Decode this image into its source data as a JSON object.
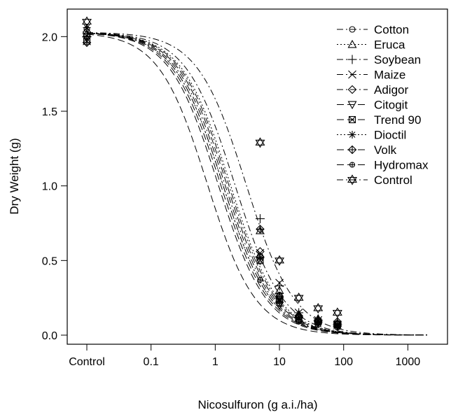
{
  "chart_data": {
    "type": "scatter",
    "title": "",
    "xlabel": "Nicosulfuron (g a.i./ha)",
    "ylabel": "Dry Weight  (g)",
    "x_scale": "log",
    "xlim": [
      0.01,
      2000
    ],
    "ylim": [
      0,
      2.1
    ],
    "x_ticks": [
      {
        "value": 0.01,
        "label": "Control"
      },
      {
        "value": 0.1,
        "label": "0.1"
      },
      {
        "value": 1,
        "label": "1"
      },
      {
        "value": 10,
        "label": "10"
      },
      {
        "value": 100,
        "label": "100"
      },
      {
        "value": 1000,
        "label": "1000"
      }
    ],
    "y_ticks": [
      {
        "value": 0.0,
        "label": "0.0"
      },
      {
        "value": 0.5,
        "label": "0.5"
      },
      {
        "value": 1.0,
        "label": "1.0"
      },
      {
        "value": 1.5,
        "label": "1.5"
      },
      {
        "value": 2.0,
        "label": "2.0"
      }
    ],
    "grid": false,
    "legend_position": "top-right",
    "x": [
      0.01,
      5,
      10,
      20,
      40,
      80
    ],
    "series": [
      {
        "name": "Cotton",
        "marker": "circle",
        "line": "dash-dot",
        "values": [
          2.05,
          0.53,
          0.27,
          0.12,
          0.1,
          0.08
        ],
        "ed50": 1.4
      },
      {
        "name": "Eruca",
        "marker": "triangle",
        "line": "dotted",
        "values": [
          2.02,
          0.7,
          0.3,
          0.14,
          0.11,
          0.08
        ],
        "ed50": 1.7
      },
      {
        "name": "Soybean",
        "marker": "plus",
        "line": "dash-dot",
        "values": [
          2.0,
          0.78,
          0.33,
          0.15,
          0.1,
          0.07
        ],
        "ed50": 2.0
      },
      {
        "name": "Maize",
        "marker": "x",
        "line": "dash-dot",
        "values": [
          1.97,
          0.55,
          0.35,
          0.15,
          0.1,
          0.07
        ],
        "ed50": 1.6
      },
      {
        "name": "Adigor",
        "marker": "diamond",
        "line": "dash-dot",
        "values": [
          2.03,
          0.56,
          0.25,
          0.12,
          0.09,
          0.07
        ],
        "ed50": 1.3
      },
      {
        "name": "Citogit",
        "marker": "down-triangle",
        "line": "dash",
        "values": [
          2.0,
          0.5,
          0.2,
          0.1,
          0.08,
          0.06
        ],
        "ed50": 1.1
      },
      {
        "name": "Trend 90",
        "marker": "boxed-x",
        "line": "dash",
        "values": [
          1.97,
          0.5,
          0.24,
          0.11,
          0.09,
          0.07
        ],
        "ed50": 1.2
      },
      {
        "name": "Dioctil",
        "marker": "asterisk",
        "line": "dotted",
        "values": [
          2.06,
          0.52,
          0.23,
          0.12,
          0.08,
          0.06
        ],
        "ed50": 1.3
      },
      {
        "name": "Volk",
        "marker": "diamond-plus",
        "line": "dash",
        "values": [
          1.96,
          0.71,
          0.26,
          0.13,
          0.1,
          0.09
        ],
        "ed50": 1.5
      },
      {
        "name": "Hydromax",
        "marker": "circle-plus",
        "line": "dash",
        "values": [
          1.99,
          0.37,
          0.21,
          0.09,
          0.07,
          0.05
        ],
        "ed50": 0.75
      },
      {
        "name": "Control",
        "marker": "star-of-david",
        "line": "dash-dot",
        "values": [
          2.1,
          1.29,
          0.5,
          0.25,
          0.18,
          0.15
        ],
        "ed50": 3.0
      }
    ]
  }
}
